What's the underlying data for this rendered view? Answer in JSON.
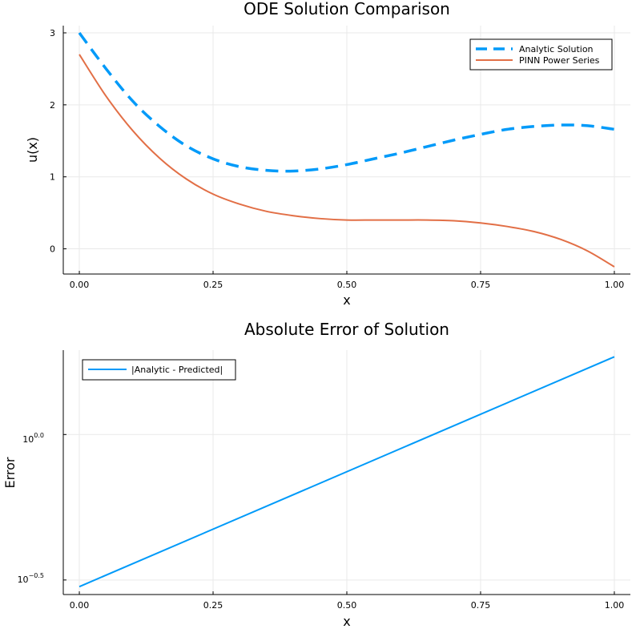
{
  "chart_data": [
    {
      "type": "line",
      "title": "ODE Solution Comparison",
      "xlabel": "x",
      "ylabel": "u(x)",
      "xlim": [
        -0.03,
        1.03
      ],
      "ylim": [
        -0.35,
        3.1
      ],
      "xticks": [
        0.0,
        0.25,
        0.5,
        0.75,
        1.0
      ],
      "xtick_labels": [
        "0.00",
        "0.25",
        "0.50",
        "0.75",
        "1.00"
      ],
      "yticks": [
        0,
        1,
        2,
        3
      ],
      "ytick_labels": [
        "0",
        "1",
        "2",
        "3"
      ],
      "grid": true,
      "legend_position": "top-right",
      "x": [
        0.0,
        0.05,
        0.1,
        0.15,
        0.2,
        0.25,
        0.3,
        0.35,
        0.4,
        0.45,
        0.5,
        0.55,
        0.6,
        0.65,
        0.7,
        0.75,
        0.8,
        0.85,
        0.9,
        0.95,
        1.0
      ],
      "series": [
        {
          "name": "Analytic Solution",
          "color": "#009af9",
          "style": "dashed",
          "values": [
            3.0,
            2.5,
            2.05,
            1.7,
            1.43,
            1.25,
            1.14,
            1.09,
            1.08,
            1.11,
            1.17,
            1.25,
            1.33,
            1.42,
            1.51,
            1.59,
            1.66,
            1.7,
            1.72,
            1.71,
            1.66
          ]
        },
        {
          "name": "PINN Power Series",
          "color": "#e26f46",
          "style": "solid",
          "values": [
            2.7,
            2.12,
            1.64,
            1.26,
            0.97,
            0.76,
            0.62,
            0.52,
            0.46,
            0.42,
            0.4,
            0.4,
            0.4,
            0.4,
            0.39,
            0.36,
            0.31,
            0.24,
            0.13,
            -0.03,
            -0.25
          ]
        }
      ]
    },
    {
      "type": "line",
      "title": "Absolute Error of Solution",
      "xlabel": "x",
      "ylabel": "Error",
      "yscale": "log10",
      "xlim": [
        -0.03,
        1.03
      ],
      "ylim_log10": [
        -0.55,
        0.29
      ],
      "xticks": [
        0.0,
        0.25,
        0.5,
        0.75,
        1.0
      ],
      "xtick_labels": [
        "0.00",
        "0.25",
        "0.50",
        "0.75",
        "1.00"
      ],
      "yticks_log10": [
        0.0,
        -0.5
      ],
      "ytick_labels": [
        {
          "base": "10",
          "exp": "0.0"
        },
        {
          "base": "10",
          "exp": "−0.5"
        }
      ],
      "grid": true,
      "legend_position": "top-left",
      "x": [
        0.0,
        1.0
      ],
      "series": [
        {
          "name": "|Analytic - Predicted|",
          "color": "#009af9",
          "style": "solid",
          "values": [
            0.3,
            1.85
          ]
        }
      ]
    }
  ]
}
